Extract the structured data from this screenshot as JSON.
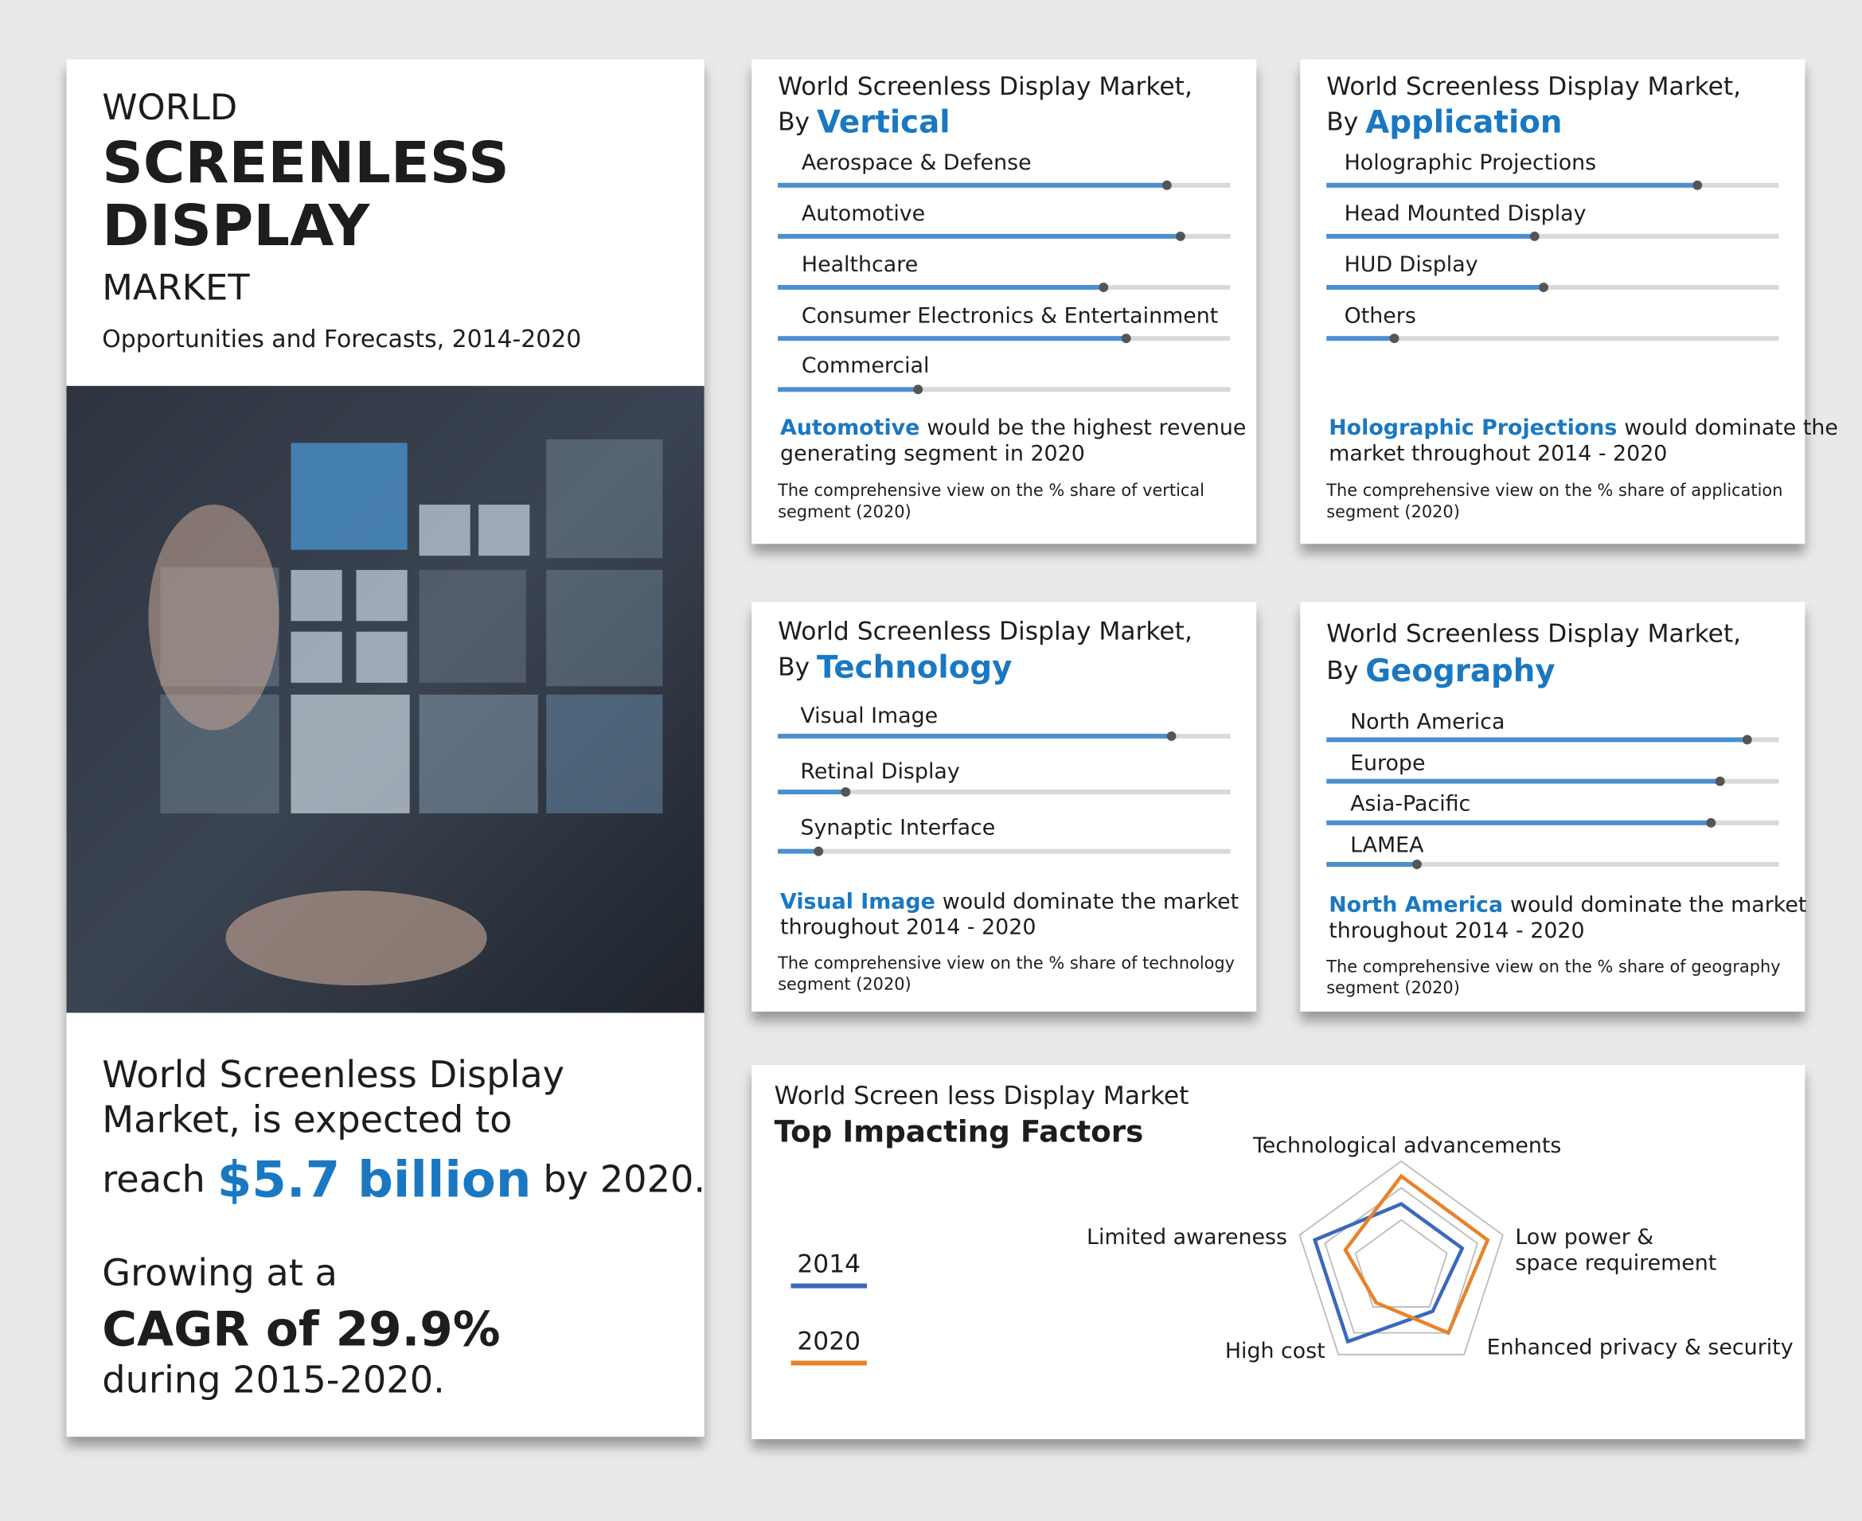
{
  "header": {
    "line1": "WORLD",
    "line2": "SCREENLESS",
    "line3": "DISPLAY",
    "line4": "MARKET",
    "subtitle": "Opportunities and Forecasts, 2014-2020"
  },
  "summary": {
    "line1": "World Screenless Display",
    "line2": "Market, is expected to",
    "reach": "reach",
    "amount": "$5.7 billion",
    "by": "by 2020.",
    "growing": "Growing at a",
    "cagr": "CAGR of 29.9%",
    "period": "during 2015-2020."
  },
  "panels": [
    {
      "title": "World Screenless Display Market,",
      "by": "By",
      "dimension": "Vertical",
      "items": [
        {
          "label": "Aerospace & Defense",
          "value": 86
        },
        {
          "label": "Automotive",
          "value": 89
        },
        {
          "label": "Healthcare",
          "value": 72
        },
        {
          "label": "Consumer Electronics & Entertainment",
          "value": 77
        },
        {
          "label": "Commercial",
          "value": 31
        }
      ],
      "note_highlight": "Automotive",
      "note_lines": [
        "would be the highest revenue",
        "generating segment in 2020"
      ],
      "caption_lines": [
        "The comprehensive view on the % share of vertical",
        "segment (2020)"
      ]
    },
    {
      "title": "World Screenless Display Market,",
      "by": "By",
      "dimension": "Application",
      "items": [
        {
          "label": "Holographic Projections",
          "value": 82
        },
        {
          "label": "Head Mounted Display",
          "value": 46
        },
        {
          "label": "HUD Display",
          "value": 48
        },
        {
          "label": "Others",
          "value": 15
        }
      ],
      "note_highlight": "Holographic Projections",
      "note_lines": [
        "would dominate the",
        "market throughout 2014 - 2020"
      ],
      "caption_lines": [
        "The comprehensive view on the % share of application",
        "segment (2020)"
      ]
    },
    {
      "title": "World Screenless Display Market,",
      "by": "By",
      "dimension": "Technology",
      "items": [
        {
          "label": "Visual Image",
          "value": 87
        },
        {
          "label": "Retinal Display",
          "value": 15
        },
        {
          "label": "Synaptic Interface",
          "value": 9
        }
      ],
      "note_highlight": "Visual Image",
      "note_lines": [
        "would dominate the market",
        "throughout 2014 - 2020"
      ],
      "caption_lines": [
        "The comprehensive view on the % share of technology",
        "segment (2020)"
      ]
    },
    {
      "title": "World Screenless Display Market,",
      "by": "By",
      "dimension": "Geography",
      "items": [
        {
          "label": "North America",
          "value": 93
        },
        {
          "label": "Europe",
          "value": 87
        },
        {
          "label": "Asia-Pacific",
          "value": 85
        },
        {
          "label": "LAMEA",
          "value": 20
        }
      ],
      "note_highlight": "North America",
      "note_lines": [
        "would dominate the market",
        "throughout 2014 - 2020"
      ],
      "caption_lines": [
        "The comprehensive view on the % share of geography",
        "segment (2020)"
      ]
    }
  ],
  "radar": {
    "title": "World Screen less Display Market",
    "subtitle": "Top Impacting Factors",
    "axes": [
      [
        "Technological advancements"
      ],
      [
        "Low power &",
        "space requirement"
      ],
      [
        "Enhanced privacy & security"
      ],
      [
        "High cost"
      ],
      [
        "Limited awareness"
      ]
    ],
    "rlim": [
      0,
      100
    ],
    "series": [
      {
        "name": "2014",
        "color": "#3a68bd",
        "values": [
          60,
          60,
          50,
          85,
          85
        ]
      },
      {
        "name": "2020",
        "color": "#e8822a",
        "values": [
          86,
          85,
          75,
          40,
          55
        ]
      }
    ]
  }
}
